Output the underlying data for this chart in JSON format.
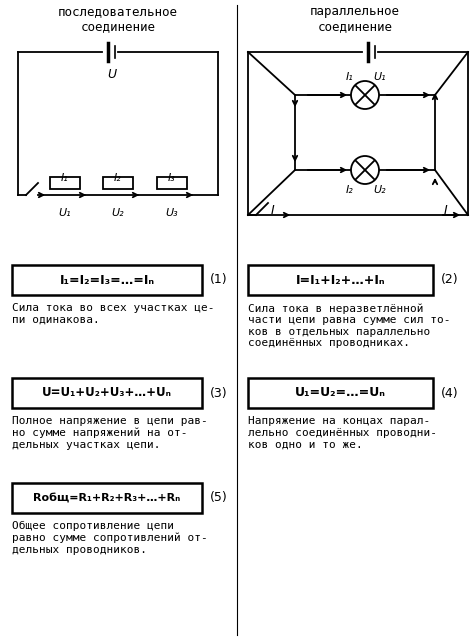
{
  "title_left": "последовательное\nсоединение",
  "title_right": "параллельное\nсоединение",
  "formula1": "I₁=I₂=I₃=…=Iₙ",
  "formula1_num": "(1)",
  "formula2": "I=I₁+I₂+…+Iₙ",
  "formula2_num": "(2)",
  "formula3": "U=U₁+U₂+U₃+…+Uₙ",
  "formula3_num": "(3)",
  "formula4": "U₁=U₂=…=Uₙ",
  "formula4_num": "(4)",
  "formula5": "Rобщ=R₁+R₂+R₃+…+Rₙ",
  "formula5_num": "(5)",
  "text1": "Сила тока во всех участках це-\nпи одинакова.",
  "text2": "Сила тока в неразветлённой\nчасти цепи равна сумме сил то-\nков в отдельных параллельно\nсоединённых проводниках.",
  "text3": "Полное напряжение в цепи рав-\nно сумме напряжений на от-\nдельных участках цепи.",
  "text4": "Напряжение на концах парал-\nлельно соединённых проводни-\nков одно и то же.",
  "text5": "Общее сопротивление цепи\nравно сумме сопротивлений от-\nдельных проводников.",
  "bg_color": "#ffffff",
  "line_color": "#000000",
  "font_color": "#000000"
}
